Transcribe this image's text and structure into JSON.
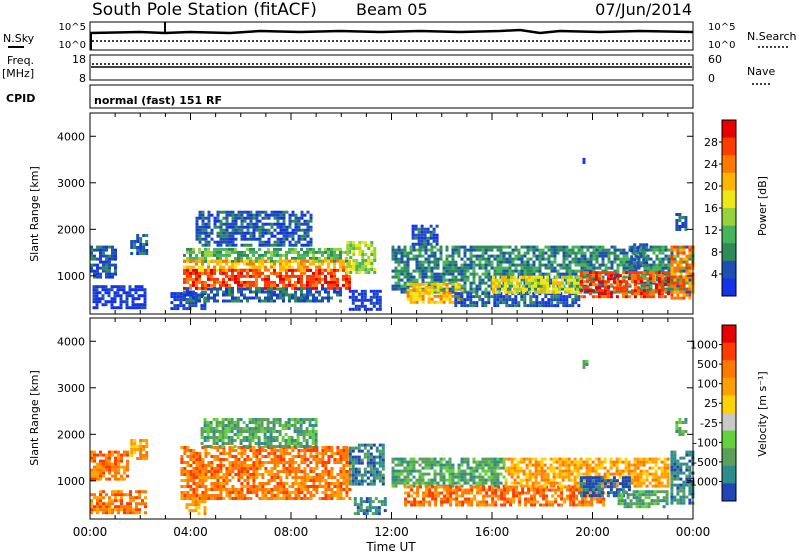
{
  "header": {
    "station": "South Pole Station (fitACF)",
    "beam": "Beam 05",
    "date": "07/Jun/2014"
  },
  "top_panels": {
    "nsky_label": "N.Sky",
    "nsearch_label": "N.Search",
    "nsky_ticks": [
      "10^5",
      "10^0"
    ],
    "nsearch_ticks": [
      "10^5",
      "10^0"
    ],
    "freq_label": "Freq.",
    "freq_unit": "[MHz]",
    "freq_ticks": [
      "18",
      "8"
    ],
    "nave_label": "Nave",
    "nave_ticks": [
      "60",
      "0"
    ],
    "cpid_label": "CPID",
    "cpid_value": "normal (fast) 151 RF"
  },
  "chart_data": [
    {
      "type": "heatmap",
      "panel": "power",
      "ylabel": "Slant Range [km]",
      "xlabel": "",
      "x_ticks": [
        "00:00",
        "04:00",
        "08:00",
        "12:00",
        "16:00",
        "20:00",
        "00:00"
      ],
      "y_ticks": [
        1000,
        2000,
        3000,
        4000
      ],
      "ylim": [
        180,
        4500
      ],
      "xlim_hours": [
        0,
        24
      ],
      "colorbar": {
        "label": "Power [dB]",
        "ticks": [
          "28",
          "24",
          "20",
          "16",
          "12",
          "8",
          "4"
        ],
        "colors": [
          "#1432e6",
          "#1e50b4",
          "#2d8c5a",
          "#46b45a",
          "#96d23c",
          "#f0e614",
          "#ffb400",
          "#ff7800",
          "#ff3c00",
          "#e60000"
        ]
      },
      "bands": [
        {
          "t0": 0.0,
          "t1": 1.0,
          "r_lo": 1000,
          "r_hi": 1650,
          "level": 1
        },
        {
          "t0": 0.1,
          "t1": 2.2,
          "r_lo": 300,
          "r_hi": 800,
          "level": 0
        },
        {
          "t0": 1.6,
          "t1": 2.3,
          "r_lo": 1500,
          "r_hi": 1900,
          "level": 1
        },
        {
          "t0": 3.2,
          "t1": 4.6,
          "r_lo": 300,
          "r_hi": 650,
          "level": 0
        },
        {
          "t0": 3.7,
          "t1": 10.3,
          "r_lo": 1300,
          "r_hi": 1600,
          "level": 3
        },
        {
          "t0": 3.7,
          "t1": 10.3,
          "r_lo": 1100,
          "r_hi": 1350,
          "level": 6
        },
        {
          "t0": 3.7,
          "t1": 10.3,
          "r_lo": 750,
          "r_hi": 1150,
          "level": 8
        },
        {
          "t0": 3.7,
          "t1": 10.0,
          "r_lo": 450,
          "r_hi": 750,
          "level": 1
        },
        {
          "t0": 4.2,
          "t1": 8.8,
          "r_lo": 1650,
          "r_hi": 2400,
          "level": 1
        },
        {
          "t0": 10.2,
          "t1": 11.3,
          "r_lo": 1100,
          "r_hi": 1750,
          "level": 4
        },
        {
          "t0": 10.3,
          "t1": 11.6,
          "r_lo": 300,
          "r_hi": 700,
          "level": 0
        },
        {
          "t0": 12.0,
          "t1": 24.0,
          "r_lo": 650,
          "r_hi": 1650,
          "level": 2
        },
        {
          "t0": 12.6,
          "t1": 14.8,
          "r_lo": 450,
          "r_hi": 850,
          "level": 6
        },
        {
          "t0": 12.8,
          "t1": 13.8,
          "r_lo": 1700,
          "r_hi": 2100,
          "level": 1
        },
        {
          "t0": 14.5,
          "t1": 19.5,
          "r_lo": 350,
          "r_hi": 650,
          "level": 1
        },
        {
          "t0": 16.0,
          "t1": 19.5,
          "r_lo": 650,
          "r_hi": 1000,
          "level": 5
        },
        {
          "t0": 19.5,
          "t1": 23.0,
          "r_lo": 550,
          "r_hi": 1100,
          "level": 8
        },
        {
          "t0": 21.5,
          "t1": 22.2,
          "r_lo": 1200,
          "r_hi": 1700,
          "level": 1
        },
        {
          "t0": 23.1,
          "t1": 24.0,
          "r_lo": 500,
          "r_hi": 1650,
          "level": 7
        },
        {
          "t0": 23.3,
          "t1": 23.7,
          "r_lo": 2000,
          "r_hi": 2350,
          "level": 1
        },
        {
          "t0": 19.6,
          "t1": 19.8,
          "r_lo": 3450,
          "r_hi": 3600,
          "level": 0
        }
      ]
    },
    {
      "type": "heatmap",
      "panel": "velocity",
      "ylabel": "Slant Range [km]",
      "xlabel": "Time UT",
      "x_ticks": [
        "00:00",
        "04:00",
        "08:00",
        "12:00",
        "16:00",
        "20:00",
        "00:00"
      ],
      "y_ticks": [
        1000,
        2000,
        3000,
        4000
      ],
      "ylim": [
        180,
        4500
      ],
      "xlim_hours": [
        0,
        24
      ],
      "colorbar": {
        "label": "Velocity [m s⁻¹]",
        "ticks": [
          "1000",
          "500",
          "100",
          "25",
          "-25",
          "-100",
          "-500",
          "-1000"
        ],
        "colors": [
          "#1e46b4",
          "#2d8c8c",
          "#5aa05a",
          "#64d23c",
          "#c8c8c8",
          "#ffd200",
          "#ffa000",
          "#ff7800",
          "#ff3c00",
          "#e60000"
        ]
      },
      "bands": [
        {
          "t0": 0.0,
          "t1": 1.5,
          "r_lo": 1050,
          "r_hi": 1650,
          "level": 7
        },
        {
          "t0": 0.0,
          "t1": 2.2,
          "r_lo": 300,
          "r_hi": 800,
          "level": 7
        },
        {
          "t0": 1.6,
          "t1": 2.3,
          "r_lo": 1500,
          "r_hi": 1900,
          "level": 6
        },
        {
          "t0": 3.6,
          "t1": 10.4,
          "r_lo": 650,
          "r_hi": 1750,
          "level": 7
        },
        {
          "t0": 3.8,
          "t1": 4.6,
          "r_lo": 300,
          "r_hi": 650,
          "level": 6
        },
        {
          "t0": 4.4,
          "t1": 9.0,
          "r_lo": 1750,
          "r_hi": 2350,
          "level": 2
        },
        {
          "t0": 10.3,
          "t1": 11.7,
          "r_lo": 900,
          "r_hi": 1800,
          "level": 1
        },
        {
          "t0": 10.5,
          "t1": 11.7,
          "r_lo": 300,
          "r_hi": 650,
          "level": 1
        },
        {
          "t0": 12.0,
          "t1": 16.5,
          "r_lo": 900,
          "r_hi": 1500,
          "level": 2
        },
        {
          "t0": 12.5,
          "t1": 20.5,
          "r_lo": 500,
          "r_hi": 900,
          "level": 7
        },
        {
          "t0": 16.5,
          "t1": 23.0,
          "r_lo": 900,
          "r_hi": 1500,
          "level": 6
        },
        {
          "t0": 19.5,
          "t1": 21.5,
          "r_lo": 650,
          "r_hi": 1100,
          "level": 0
        },
        {
          "t0": 21.0,
          "t1": 23.0,
          "r_lo": 450,
          "r_hi": 800,
          "level": 2
        },
        {
          "t0": 23.1,
          "t1": 24.0,
          "r_lo": 500,
          "r_hi": 1650,
          "level": 1
        },
        {
          "t0": 23.3,
          "t1": 23.7,
          "r_lo": 2000,
          "r_hi": 2350,
          "level": 2
        },
        {
          "t0": 19.6,
          "t1": 19.8,
          "r_lo": 3450,
          "r_hi": 3600,
          "level": 2
        }
      ]
    }
  ]
}
